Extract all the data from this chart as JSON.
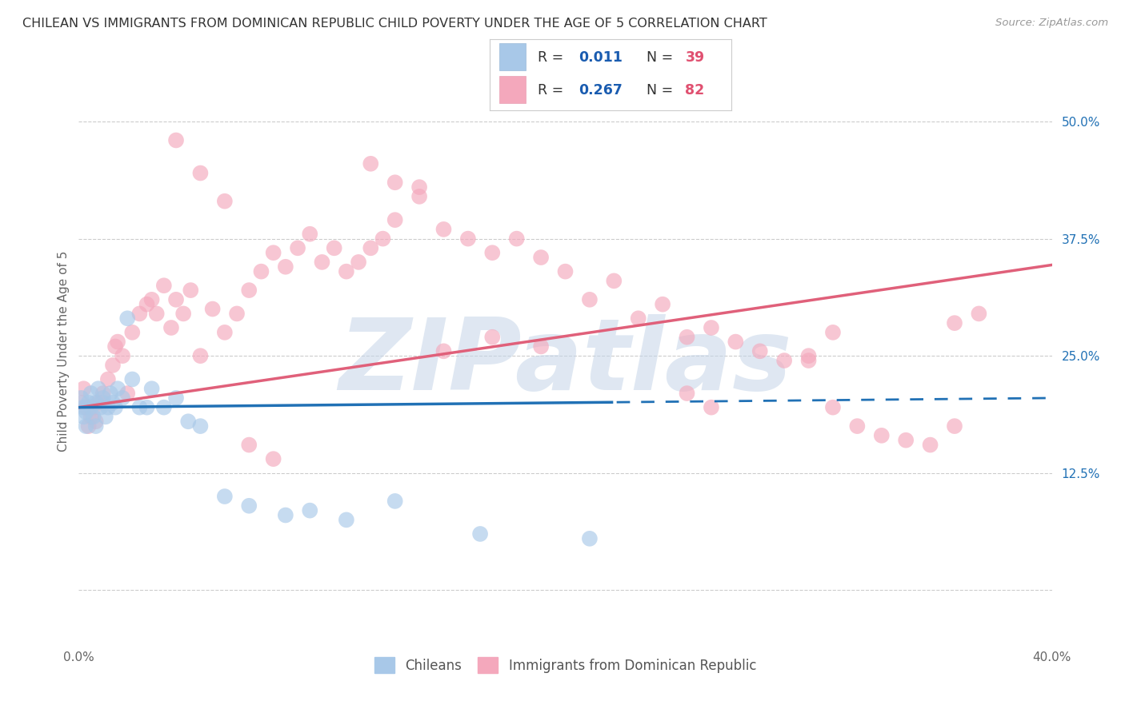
{
  "title": "CHILEAN VS IMMIGRANTS FROM DOMINICAN REPUBLIC CHILD POVERTY UNDER THE AGE OF 5 CORRELATION CHART",
  "source": "Source: ZipAtlas.com",
  "ylabel": "Child Poverty Under the Age of 5",
  "xlim": [
    0.0,
    0.4
  ],
  "ylim": [
    -0.055,
    0.565
  ],
  "xticks": [
    0.0,
    0.05,
    0.1,
    0.15,
    0.2,
    0.25,
    0.3,
    0.35,
    0.4
  ],
  "yticks_right": [
    0.0,
    0.125,
    0.25,
    0.375,
    0.5
  ],
  "ytick_labels_right": [
    "",
    "12.5%",
    "25.0%",
    "37.5%",
    "50.0%"
  ],
  "blue_scatter_color": "#a8c8e8",
  "pink_scatter_color": "#f4a8bc",
  "blue_line_color": "#2171b5",
  "pink_line_color": "#e0607a",
  "blue_r_text": "0.011",
  "blue_n_text": "39",
  "pink_r_text": "0.267",
  "pink_n_text": "82",
  "watermark": "ZIPatlas",
  "watermark_color": "#c5d5e8",
  "background_color": "#ffffff",
  "grid_color": "#cccccc",
  "legend_text_color_r": "#1a5cb0",
  "legend_text_color_n": "#e05070",
  "legend_text_color_label": "#333333",
  "blue_scatter_x": [
    0.001,
    0.002,
    0.002,
    0.003,
    0.003,
    0.004,
    0.005,
    0.005,
    0.006,
    0.007,
    0.007,
    0.008,
    0.009,
    0.01,
    0.01,
    0.011,
    0.012,
    0.013,
    0.014,
    0.015,
    0.016,
    0.018,
    0.02,
    0.022,
    0.025,
    0.028,
    0.03,
    0.035,
    0.04,
    0.045,
    0.05,
    0.06,
    0.07,
    0.085,
    0.095,
    0.11,
    0.13,
    0.165,
    0.21
  ],
  "blue_scatter_y": [
    0.205,
    0.195,
    0.185,
    0.175,
    0.19,
    0.2,
    0.21,
    0.195,
    0.185,
    0.175,
    0.2,
    0.215,
    0.195,
    0.2,
    0.205,
    0.185,
    0.195,
    0.21,
    0.2,
    0.195,
    0.215,
    0.205,
    0.29,
    0.225,
    0.195,
    0.195,
    0.215,
    0.195,
    0.205,
    0.18,
    0.175,
    0.1,
    0.09,
    0.08,
    0.085,
    0.075,
    0.095,
    0.06,
    0.055
  ],
  "pink_scatter_x": [
    0.001,
    0.002,
    0.003,
    0.004,
    0.005,
    0.006,
    0.007,
    0.008,
    0.01,
    0.012,
    0.014,
    0.015,
    0.016,
    0.018,
    0.02,
    0.022,
    0.025,
    0.028,
    0.03,
    0.032,
    0.035,
    0.038,
    0.04,
    0.043,
    0.046,
    0.05,
    0.055,
    0.06,
    0.065,
    0.07,
    0.075,
    0.08,
    0.085,
    0.09,
    0.095,
    0.1,
    0.105,
    0.11,
    0.115,
    0.12,
    0.125,
    0.13,
    0.14,
    0.15,
    0.16,
    0.17,
    0.18,
    0.19,
    0.2,
    0.21,
    0.22,
    0.23,
    0.24,
    0.25,
    0.26,
    0.27,
    0.28,
    0.29,
    0.3,
    0.31,
    0.32,
    0.33,
    0.34,
    0.35,
    0.36,
    0.3,
    0.31,
    0.15,
    0.17,
    0.19,
    0.04,
    0.05,
    0.06,
    0.12,
    0.13,
    0.14,
    0.25,
    0.26,
    0.36,
    0.37,
    0.07,
    0.08
  ],
  "pink_scatter_y": [
    0.2,
    0.215,
    0.195,
    0.175,
    0.185,
    0.195,
    0.18,
    0.2,
    0.21,
    0.225,
    0.24,
    0.26,
    0.265,
    0.25,
    0.21,
    0.275,
    0.295,
    0.305,
    0.31,
    0.295,
    0.325,
    0.28,
    0.31,
    0.295,
    0.32,
    0.25,
    0.3,
    0.275,
    0.295,
    0.32,
    0.34,
    0.36,
    0.345,
    0.365,
    0.38,
    0.35,
    0.365,
    0.34,
    0.35,
    0.365,
    0.375,
    0.395,
    0.42,
    0.385,
    0.375,
    0.36,
    0.375,
    0.355,
    0.34,
    0.31,
    0.33,
    0.29,
    0.305,
    0.27,
    0.28,
    0.265,
    0.255,
    0.245,
    0.245,
    0.195,
    0.175,
    0.165,
    0.16,
    0.155,
    0.175,
    0.25,
    0.275,
    0.255,
    0.27,
    0.26,
    0.48,
    0.445,
    0.415,
    0.455,
    0.435,
    0.43,
    0.21,
    0.195,
    0.285,
    0.295,
    0.155,
    0.14
  ]
}
